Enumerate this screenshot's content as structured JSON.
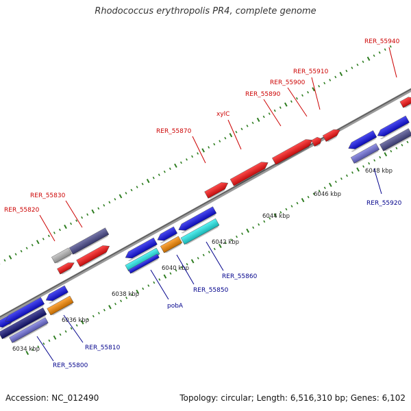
{
  "title": "Rhodococcus erythropolis PR4, complete genome",
  "footer": {
    "accession": "Accession: NC_012490",
    "summary": "Topology: circular; Length: 6,516,310 bp; Genes: 6,102"
  },
  "colors": {
    "backbone": "#777777",
    "tick": "#2e7d20",
    "label_top": "#cc0000",
    "label_bottom": "#00008b",
    "gene_red": "#ff1111",
    "gene_blue": "#1010ee",
    "gene_navy": "#13137a",
    "gene_slate": "#4a4a8e",
    "gene_periwinkle": "#7070dd",
    "gene_cyan": "#22eeee",
    "gene_orange": "#ff8c00",
    "gene_gray": "#bbbbbb"
  },
  "scale_labels": [
    "6034 kbp",
    "6036 kbp",
    "6038 kbp",
    "6040 kbp",
    "6042 kbp",
    "6044 kbp",
    "6046 kbp",
    "6048 kbp"
  ],
  "labels_top": [
    "RER_55820",
    "RER_55830",
    "RER_55870",
    "xylC",
    "RER_55890",
    "RER_55900",
    "RER_55910",
    "RER_55940"
  ],
  "labels_bottom": [
    "RER_55800",
    "RER_55810",
    "pobA",
    "RER_55850",
    "RER_55860",
    "RER_55920"
  ]
}
